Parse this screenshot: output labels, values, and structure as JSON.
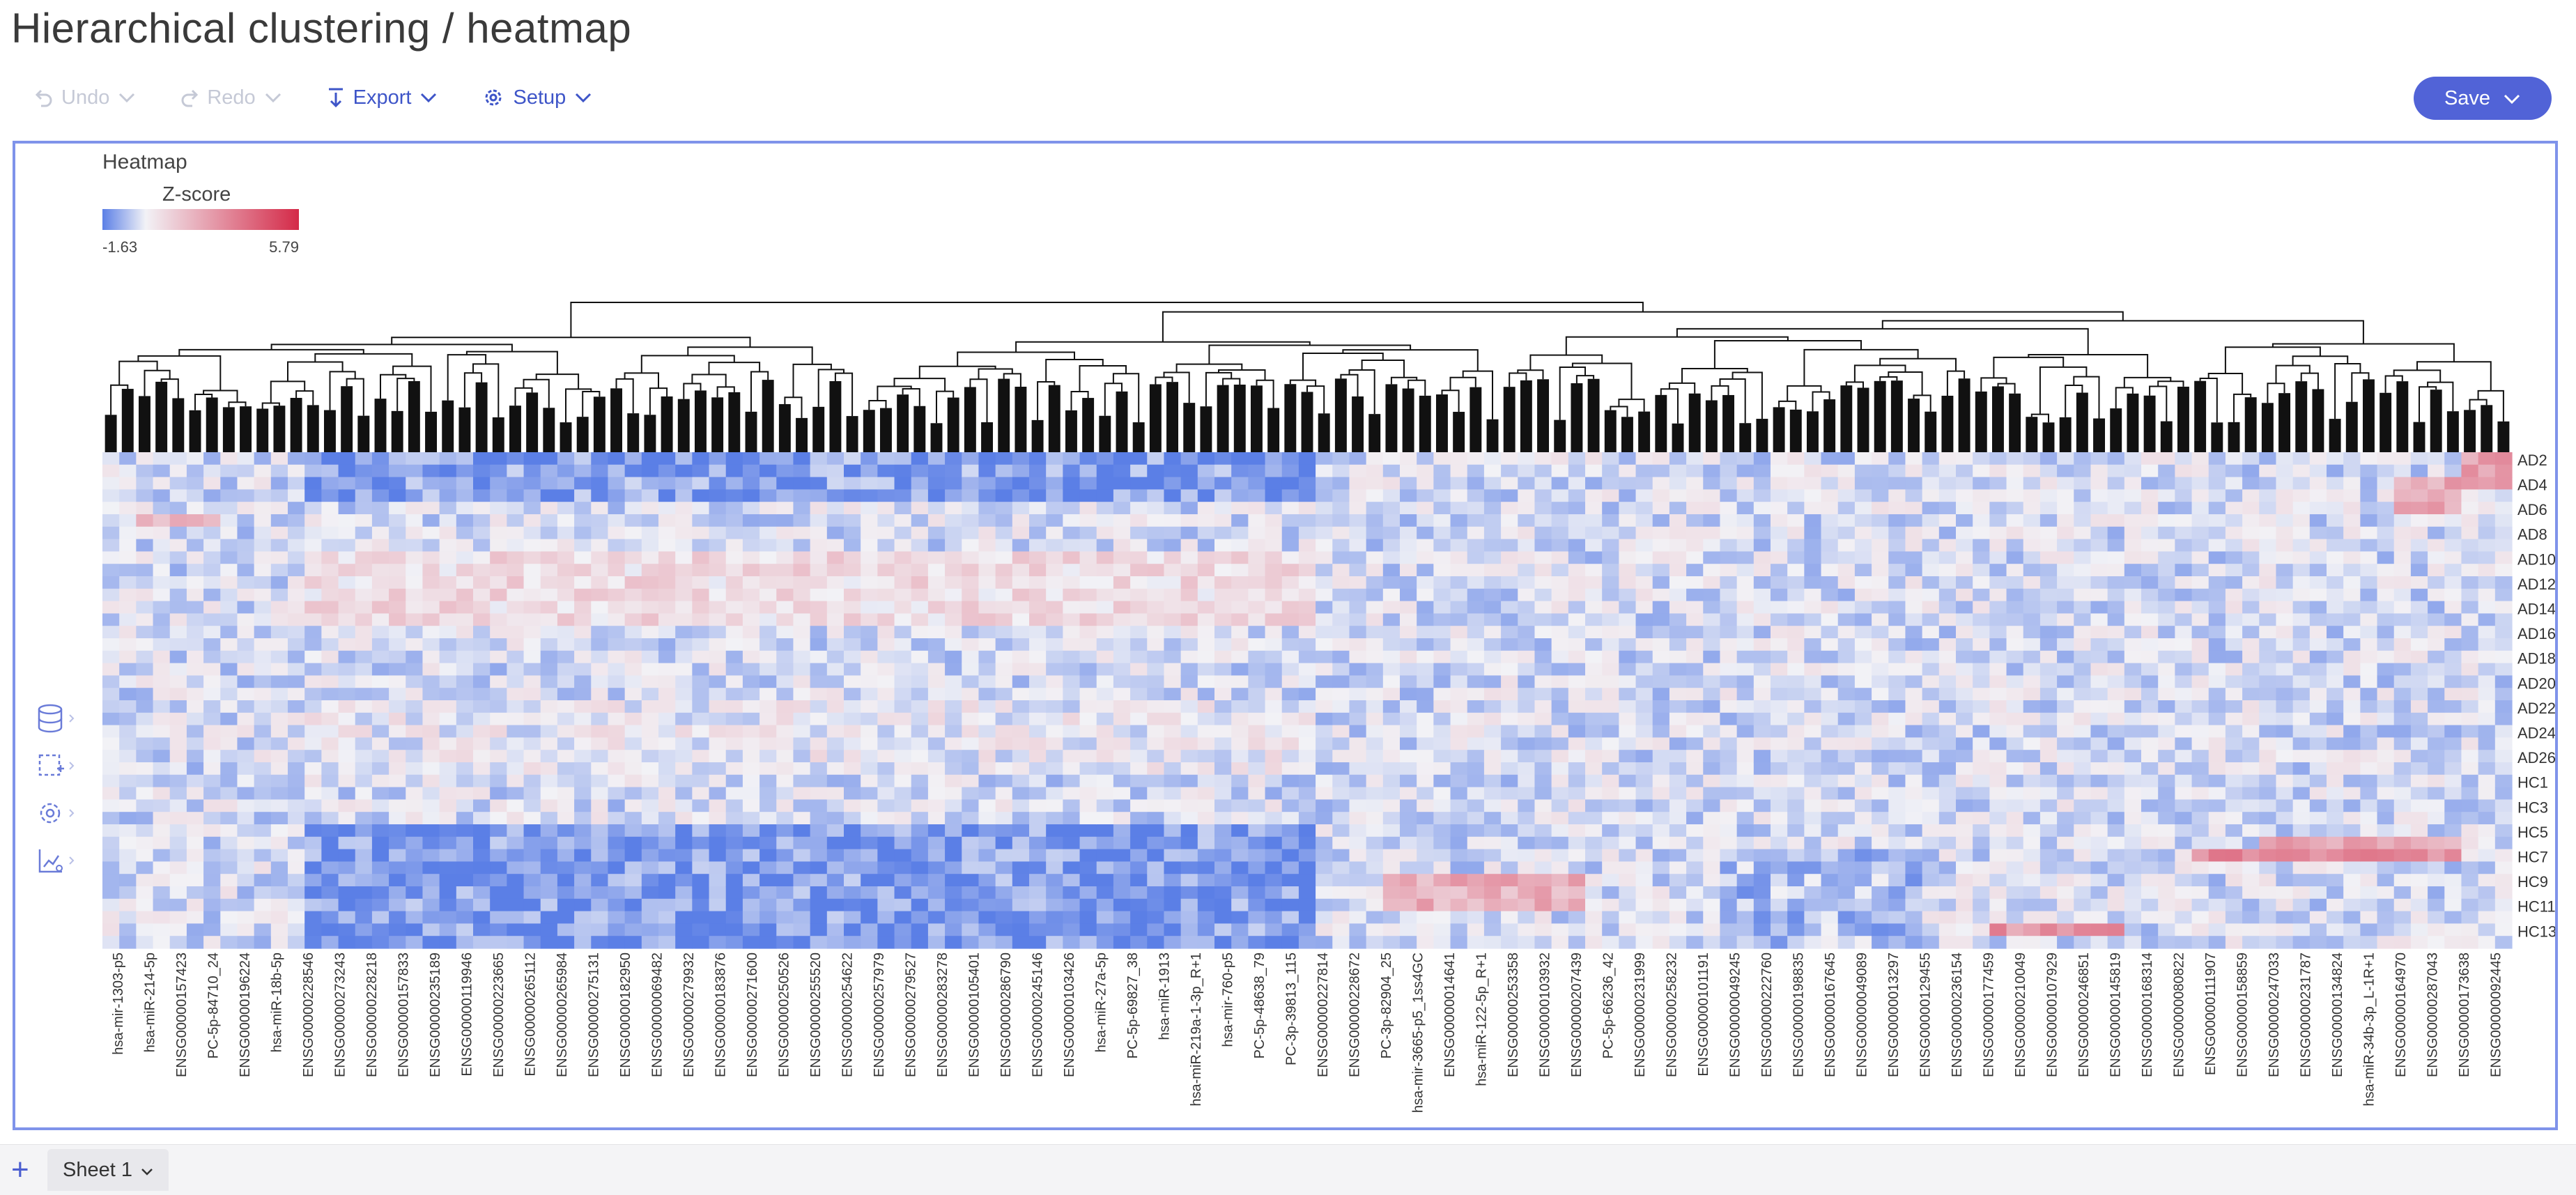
{
  "page": {
    "title": "Hierarchical clustering / heatmap"
  },
  "toolbar": {
    "undo_label": "Undo",
    "redo_label": "Redo",
    "export_label": "Export",
    "setup_label": "Setup",
    "save_label": "Save"
  },
  "icons": {
    "undo": "undo-icon",
    "redo": "redo-icon",
    "export": "export-icon",
    "setup": "gear-icon",
    "save_dropdown": "chevron-down-icon",
    "sidebar": [
      "database-icon",
      "selection-icon",
      "settings-icon",
      "chart-settings-icon"
    ]
  },
  "colors": {
    "accent": "#5163d7",
    "low": "#5b7fe6",
    "mid": "#f2f2f6",
    "high": "#d42a48"
  },
  "sheet": {
    "add_label": "+",
    "tab_label": "Sheet 1"
  },
  "chart_data": {
    "type": "heatmap",
    "title": "Heatmap",
    "legend": {
      "title": "Z-score",
      "min_label": "-1.63",
      "max_label": "5.79",
      "min": -1.63,
      "max": 5.79
    },
    "dendrogram": "top",
    "column_count": 143,
    "row_count": 40,
    "row_labels": [
      "AD2",
      "AD4",
      "AD6",
      "AD8",
      "AD10",
      "AD12",
      "AD14",
      "AD16",
      "AD18",
      "AD20",
      "AD22",
      "AD24",
      "AD26",
      "HC1",
      "HC3",
      "HC5",
      "HC7",
      "HC9",
      "HC11",
      "HC13"
    ],
    "column_labels": [
      "hsa-mir-1303-p5",
      "hsa-miR-214-5p",
      "ENSG00000157423",
      "PC-5p-84710_24",
      "ENSG00000196224",
      "hsa-miR-18b-5p",
      "ENSG00000228546",
      "ENSG00000273243",
      "ENSG00000228218",
      "ENSG00000157833",
      "ENSG00000235189",
      "ENSG00000119946",
      "ENSG00000223665",
      "ENSG00000265112",
      "ENSG00000265984",
      "ENSG00000275131",
      "ENSG00000182950",
      "ENSG00000069482",
      "ENSG00000279932",
      "ENSG00000183876",
      "ENSG00000271600",
      "ENSG00000250526",
      "ENSG00000255520",
      "ENSG00000254622",
      "ENSG00000257979",
      "ENSG00000279527",
      "ENSG00000283278",
      "ENSG00000105401",
      "ENSG00000286790",
      "ENSG00000245146",
      "ENSG00000103426",
      "hsa-miR-27a-5p",
      "PC-5p-69827_38",
      "hsa-miR-1913",
      "hsa-miR-219a-1-3p_R+1",
      "hsa-mir-760-p5",
      "PC-5p-48638_79",
      "PC-3p-39813_115",
      "ENSG00000227814",
      "ENSG00000228672",
      "PC-3p-82904_25",
      "hsa-mir-3665-p5_1ss4GC",
      "ENSG00000014641",
      "hsa-miR-122-5p_R+1",
      "ENSG00000253358",
      "ENSG00000103932",
      "ENSG00000207439",
      "PC-5p-66236_42",
      "ENSG00000231999",
      "ENSG00000258232",
      "ENSG00000101191",
      "ENSG00000049245",
      "ENSG00000222760",
      "ENSG00000198835",
      "ENSG00000167645",
      "ENSG00000049089",
      "ENSG00000013297",
      "ENSG00000129455",
      "ENSG00000236154",
      "ENSG00000177459",
      "ENSG00000210049",
      "ENSG00000107929",
      "ENSG00000246851",
      "ENSG00000145819",
      "ENSG00000168314",
      "ENSG00000080822",
      "ENSG00000111907",
      "ENSG00000158859",
      "ENSG00000247033",
      "ENSG00000231787",
      "ENSG00000134824",
      "hsa-miR-34b-3p_L-1R+1",
      "ENSG00000164970",
      "ENSG00000287043",
      "ENSG00000173638",
      "ENSG00000092445"
    ]
  }
}
